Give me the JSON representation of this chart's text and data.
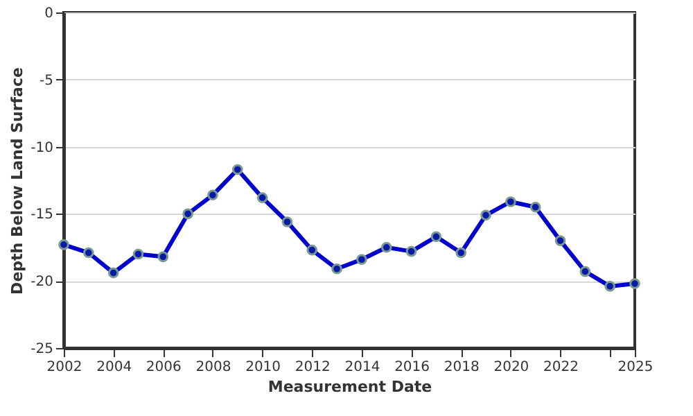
{
  "chart_data": {
    "type": "line",
    "xlabel": "Measurement Date",
    "ylabel": "Depth Below Land Surface",
    "x": [
      2002,
      2003,
      2004,
      2005,
      2006,
      2007,
      2008,
      2009,
      2010,
      2011,
      2012,
      2013,
      2014,
      2015,
      2016,
      2017,
      2018,
      2019,
      2020,
      2021,
      2022,
      2023,
      2024,
      2025
    ],
    "series": [
      {
        "color": "#0000cc",
        "values": [
          -17.3,
          -17.9,
          -19.4,
          -18.0,
          -18.2,
          -15.0,
          -13.6,
          -11.7,
          -13.8,
          -15.6,
          -17.7,
          -19.1,
          -18.4,
          -17.5,
          -17.8,
          -16.7,
          -17.9,
          -15.1,
          -14.1,
          -14.5,
          -17.0,
          -19.3,
          -20.4,
          -20.2
        ]
      }
    ],
    "xlim": [
      2002,
      2025
    ],
    "xticks": [
      2002,
      2004,
      2006,
      2008,
      2010,
      2012,
      2014,
      2016,
      2018,
      2020,
      2022,
      {
        "value": 2024,
        "label": null
      },
      {
        "value": 2025,
        "label": "2025"
      }
    ],
    "ylim": [
      -25,
      0
    ],
    "yticks": [
      -25,
      -20,
      -15,
      -10,
      -5,
      0
    ],
    "grid": "y",
    "marker": "circle",
    "line_style": "solid"
  }
}
